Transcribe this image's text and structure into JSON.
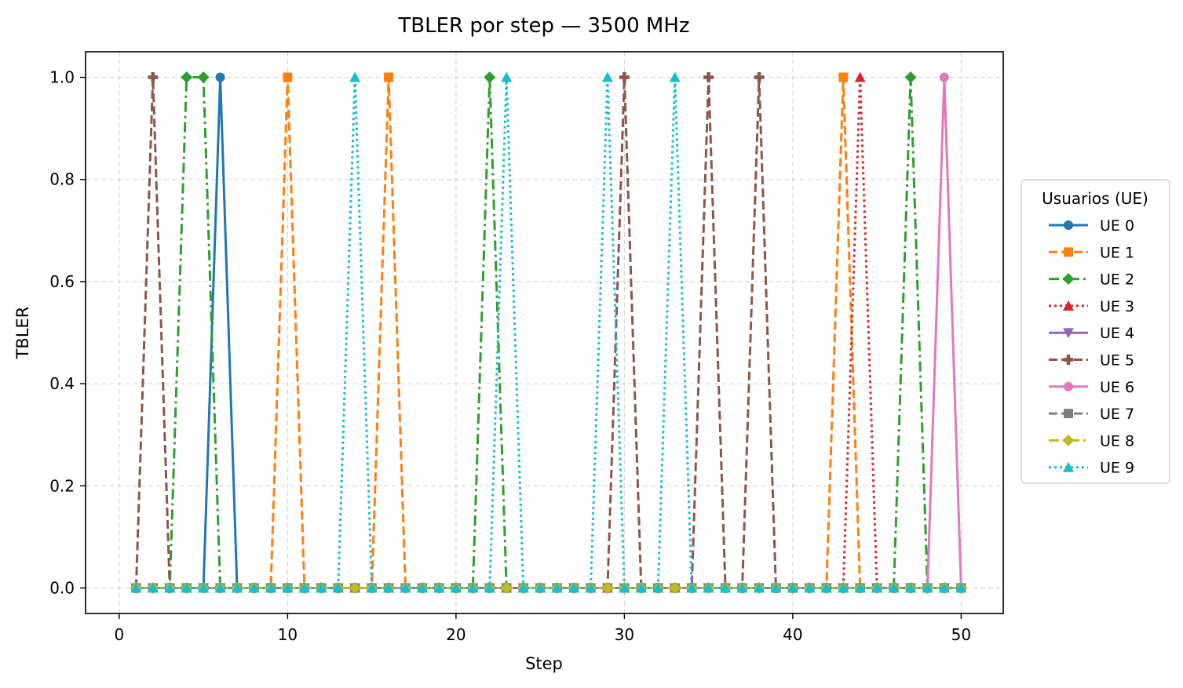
{
  "chart_data": {
    "type": "line",
    "title": "TBLER por step — 3500 MHz",
    "xlabel": "Step",
    "ylabel": "TBLER",
    "xlim": [
      -2,
      52.5
    ],
    "ylim": [
      -0.05,
      1.05
    ],
    "xticks": [
      0,
      10,
      20,
      30,
      40,
      50
    ],
    "xtick_labels": [
      "0",
      "10",
      "20",
      "30",
      "40",
      "50"
    ],
    "yticks": [
      0.0,
      0.2,
      0.4,
      0.6,
      0.8,
      1.0
    ],
    "ytick_labels": [
      "0.0",
      "0.2",
      "0.4",
      "0.6",
      "0.8",
      "1.0"
    ],
    "grid": true,
    "legend_title": "Usuarios (UE)",
    "legend_placement": "right outside",
    "x": [
      1,
      2,
      3,
      4,
      5,
      6,
      7,
      8,
      9,
      10,
      11,
      12,
      13,
      14,
      15,
      16,
      17,
      18,
      19,
      20,
      21,
      22,
      23,
      24,
      25,
      26,
      27,
      28,
      29,
      30,
      31,
      32,
      33,
      34,
      35,
      36,
      37,
      38,
      39,
      40,
      41,
      42,
      43,
      44,
      45,
      46,
      47,
      48,
      49,
      50
    ],
    "series": [
      {
        "name": "UE 0",
        "color": "#1f77b4",
        "marker": "circle",
        "dash": "solid",
        "spikes": [
          6
        ]
      },
      {
        "name": "UE 1",
        "color": "#ff7f0e",
        "marker": "square",
        "dash": "dashed",
        "spikes": [
          10,
          16,
          43
        ]
      },
      {
        "name": "UE 2",
        "color": "#2ca02c",
        "marker": "diamond",
        "dash": "dashdot",
        "spikes": [
          4,
          5,
          22,
          47
        ]
      },
      {
        "name": "UE 3",
        "color": "#d62728",
        "marker": "triangle-up",
        "dash": "dotted",
        "spikes": [
          44
        ]
      },
      {
        "name": "UE 4",
        "color": "#9467bd",
        "marker": "triangle-down",
        "dash": "solid",
        "spikes": []
      },
      {
        "name": "UE 5",
        "color": "#8c564b",
        "marker": "plus",
        "dash": "dashed",
        "spikes": [
          2,
          30,
          35,
          38
        ]
      },
      {
        "name": "UE 6",
        "color": "#e377c2",
        "marker": "circle",
        "dash": "solid",
        "spikes": [
          49
        ]
      },
      {
        "name": "UE 7",
        "color": "#7f7f7f",
        "marker": "square",
        "dash": "dashed",
        "spikes": []
      },
      {
        "name": "UE 8",
        "color": "#bcbd22",
        "marker": "diamond",
        "dash": "dashdot",
        "spikes": []
      },
      {
        "name": "UE 9",
        "color": "#17becf",
        "marker": "triangle-up",
        "dash": "dotted",
        "spikes": [
          14,
          23,
          29,
          33
        ]
      }
    ]
  }
}
